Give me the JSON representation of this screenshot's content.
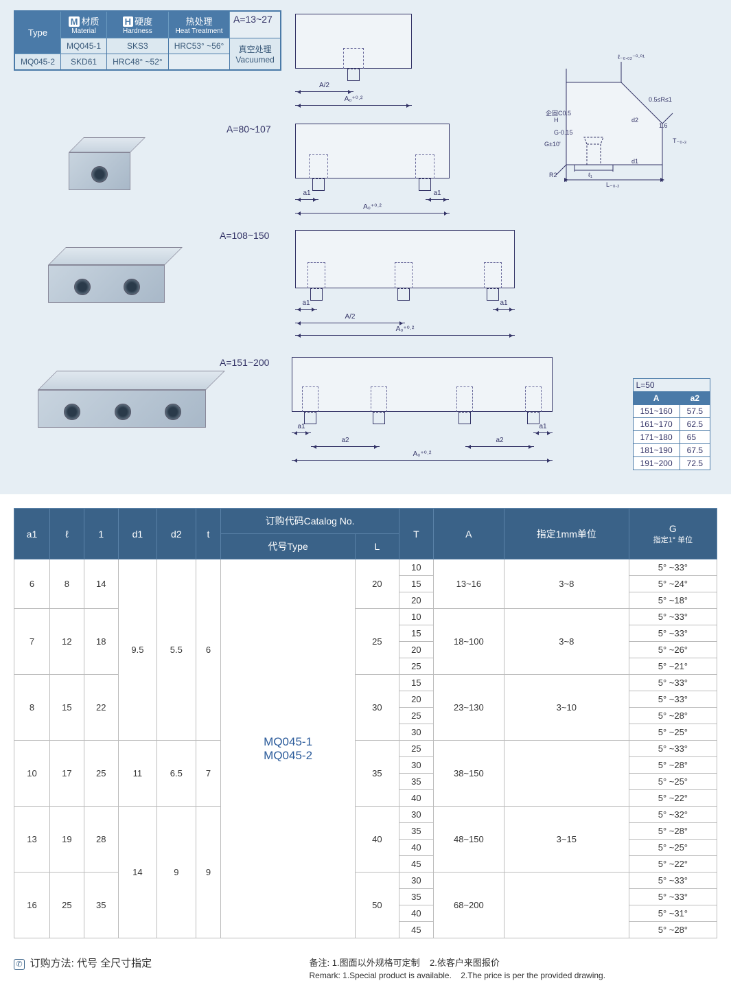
{
  "specs_table": {
    "headers": {
      "type": "Type",
      "material_cn": "材质",
      "material_en": "Material",
      "material_badge": "M",
      "hardness_cn": "硬度",
      "hardness_en": "Hardness",
      "hardness_badge": "H",
      "heat_cn": "热处理",
      "heat_en": "Heat Treatment"
    },
    "rows": [
      {
        "type": "MQ045-1",
        "material": "SKS3",
        "hardness": "HRC53° ~56°",
        "heat": "真空处理\nVacuumed"
      },
      {
        "type": "MQ045-2",
        "material": "SKD61",
        "hardness": "HRC48° ~52°"
      }
    ]
  },
  "drawings": {
    "d1": {
      "label": "A=13~27",
      "dim_half": "A/2",
      "dim_full": "A₀⁺⁰·²"
    },
    "d2": {
      "label": "A=80~107",
      "dim_a1_l": "a1",
      "dim_a1_r": "a1",
      "dim_full": "A₀⁺⁰·²"
    },
    "d3": {
      "label": "A=108~150",
      "dim_a1_l": "a1",
      "dim_a1_r": "a1",
      "dim_half": "A/2",
      "dim_full": "A₀⁺⁰·²"
    },
    "d4": {
      "label": "A=151~200",
      "dim_a1_l": "a1",
      "dim_a1_r": "a1",
      "dim_a2_l": "a2",
      "dim_a2_r": "a2",
      "dim_full": "A₀⁺⁰·²"
    }
  },
  "detail": {
    "labels": {
      "chamfer": "企固C0.5",
      "to1": "ℓ₋₀.₀₂⁻⁰·⁰¹",
      "r_range": "0.5≤R≤1",
      "d2": "d2",
      "g10": "G±10'",
      "t03": "T₋₀.₃",
      "h": "H",
      "g015": "G-0.15",
      "r2": "R2",
      "l1": "ℓ₁",
      "d1": "d1",
      "L": "L₋₀.₂",
      "angle16": "1.6"
    }
  },
  "a2_table": {
    "caption": "L=50",
    "headers": {
      "A": "A",
      "a2": "a2"
    },
    "rows": [
      {
        "A": "151~160",
        "a2": "57.5"
      },
      {
        "A": "161~170",
        "a2": "62.5"
      },
      {
        "A": "171~180",
        "a2": "65"
      },
      {
        "A": "181~190",
        "a2": "67.5"
      },
      {
        "A": "191~200",
        "a2": "72.5"
      }
    ]
  },
  "main_table": {
    "headers": {
      "a1": "a1",
      "l": "ℓ",
      "one": "1",
      "d1": "d1",
      "d2": "d2",
      "t": "t",
      "catalog": "订购代码Catalog No.",
      "type": "代号Type",
      "L": "L",
      "T": "T",
      "A": "A",
      "unit1mm": "指定1mm单位",
      "G": "G",
      "G_sub": "指定1° 单位"
    },
    "type_values": [
      "MQ045-1",
      "MQ045-2"
    ],
    "groups": [
      {
        "a1": "6",
        "l": "8",
        "one": "14",
        "d1": "9.5",
        "d2": "5.5",
        "t": "6",
        "L": "20",
        "T": [
          "10",
          "15",
          "20"
        ],
        "A": "13~16",
        "u": "3~8",
        "G": [
          "5° ~33°",
          "5° ~24°",
          "5° ~18°"
        ]
      },
      {
        "a1": "7",
        "l": "12",
        "one": "18",
        "L": "25",
        "T": [
          "10",
          "15",
          "20",
          "25"
        ],
        "A": "18~100",
        "u": "3~8",
        "G": [
          "5° ~33°",
          "5° ~33°",
          "5° ~26°",
          "5° ~21°"
        ]
      },
      {
        "a1": "8",
        "l": "15",
        "one": "22",
        "L": "30",
        "T": [
          "15",
          "20",
          "25",
          "30"
        ],
        "A": "23~130",
        "u": "3~10",
        "G": [
          "5° ~33°",
          "5° ~33°",
          "5° ~28°",
          "5° ~25°"
        ]
      },
      {
        "a1": "10",
        "l": "17",
        "one": "25",
        "d1": "11",
        "d2": "6.5",
        "t": "7",
        "L": "35",
        "T": [
          "25",
          "30",
          "35",
          "40"
        ],
        "A": "38~150",
        "u": " ",
        "G": [
          "5° ~33°",
          "5° ~28°",
          "5° ~25°",
          "5° ~22°"
        ]
      },
      {
        "a1": "13",
        "l": "19",
        "one": "28",
        "d1": "14",
        "d2": "9",
        "t": "9",
        "L": "40",
        "T": [
          "30",
          "35",
          "40",
          "45"
        ],
        "A": "48~150",
        "u": "3~15",
        "G": [
          "5° ~32°",
          "5° ~28°",
          "5° ~25°",
          "5° ~22°"
        ]
      },
      {
        "a1": "16",
        "l": "25",
        "one": "35",
        "L": "50",
        "T": [
          "30",
          "35",
          "40",
          "45"
        ],
        "A": "68~200",
        "u": " ",
        "G": [
          "5° ~33°",
          "5° ~33°",
          "5° ~31°",
          "5° ~28°"
        ]
      }
    ]
  },
  "footer": {
    "order_cn": "订购方法:  代号  全尺寸指定",
    "remark_cn_1": "备注:  1.图面以外规格可定制",
    "remark_cn_2": "2.依客户来图报价",
    "remark_en_1": "Remark: 1.Special product is available.",
    "remark_en_2": "2.The price is per the provided drawing."
  },
  "colors": {
    "header_bg": "#3a6288",
    "light_bg": "#e6eef4",
    "line": "#336699"
  }
}
